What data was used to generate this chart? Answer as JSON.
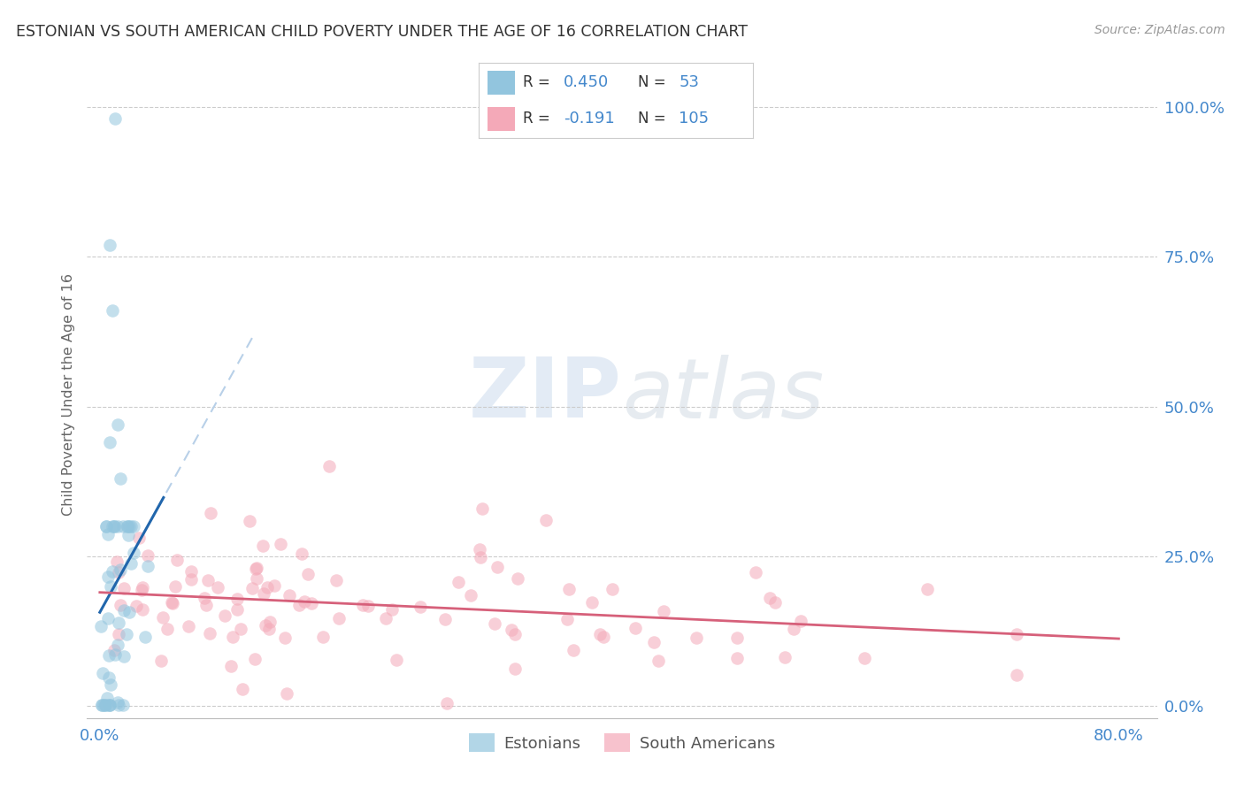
{
  "title": "ESTONIAN VS SOUTH AMERICAN CHILD POVERTY UNDER THE AGE OF 16 CORRELATION CHART",
  "source": "Source: ZipAtlas.com",
  "ylabel": "Child Poverty Under the Age of 16",
  "ytick_labels": [
    "0.0%",
    "25.0%",
    "50.0%",
    "75.0%",
    "100.0%"
  ],
  "ytick_values": [
    0,
    25,
    50,
    75,
    100
  ],
  "watermark_zip": "ZIP",
  "watermark_atlas": "atlas",
  "legend_r1": "0.450",
  "legend_n1": "53",
  "legend_r2": "-0.191",
  "legend_n2": "105",
  "estonian_color": "#92c5de",
  "sa_color": "#f4a9b8",
  "estonian_line_color": "#2166ac",
  "sa_line_color": "#d6607a",
  "regression_dash_color": "#b8d0e8",
  "background_color": "#ffffff",
  "grid_color": "#cccccc",
  "title_color": "#333333",
  "axis_tick_color": "#4488cc",
  "r_color": "#4488cc",
  "n_color": "#4488cc",
  "legend_border_color": "#cccccc",
  "bottom_legend_color": "#555555"
}
